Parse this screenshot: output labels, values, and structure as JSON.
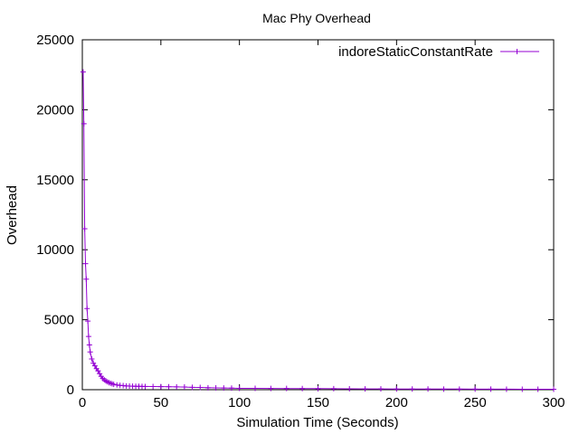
{
  "chart_data": {
    "type": "line",
    "title": "Mac Phy Overhead",
    "xlabel": "Simulation Time (Seconds)",
    "ylabel": "Overhead",
    "xlim": [
      0,
      300
    ],
    "ylim": [
      0,
      25000
    ],
    "xticks": [
      0,
      50,
      100,
      150,
      200,
      250,
      300
    ],
    "yticks": [
      0,
      5000,
      10000,
      15000,
      20000,
      25000
    ],
    "grid": false,
    "legend_position": "top-right",
    "line_color": "#9400d3",
    "series": [
      {
        "name": "indoreStaticConstantRate",
        "x": [
          0.5,
          1,
          1.5,
          2,
          2.5,
          3,
          3.5,
          4,
          4.5,
          5,
          6,
          7,
          8,
          9,
          10,
          11,
          12,
          13,
          14,
          15,
          16,
          17,
          18,
          19,
          20,
          22,
          24,
          26,
          28,
          30,
          32,
          34,
          36,
          38,
          40,
          45,
          50,
          55,
          60,
          65,
          70,
          75,
          80,
          85,
          90,
          95,
          100,
          110,
          120,
          130,
          140,
          150,
          160,
          170,
          180,
          190,
          200,
          210,
          220,
          230,
          240,
          250,
          260,
          270,
          280,
          290,
          300
        ],
        "y": [
          22700,
          19000,
          11500,
          9000,
          7900,
          5800,
          4900,
          3800,
          3200,
          2700,
          2200,
          1900,
          1700,
          1500,
          1350,
          1150,
          950,
          800,
          700,
          620,
          560,
          500,
          460,
          420,
          380,
          340,
          310,
          290,
          270,
          260,
          250,
          245,
          240,
          235,
          230,
          225,
          220,
          210,
          200,
          190,
          170,
          160,
          140,
          130,
          120,
          110,
          100,
          95,
          90,
          85,
          80,
          75,
          70,
          65,
          60,
          55,
          50,
          48,
          46,
          44,
          42,
          40,
          38,
          36,
          34,
          32,
          30
        ]
      }
    ]
  }
}
